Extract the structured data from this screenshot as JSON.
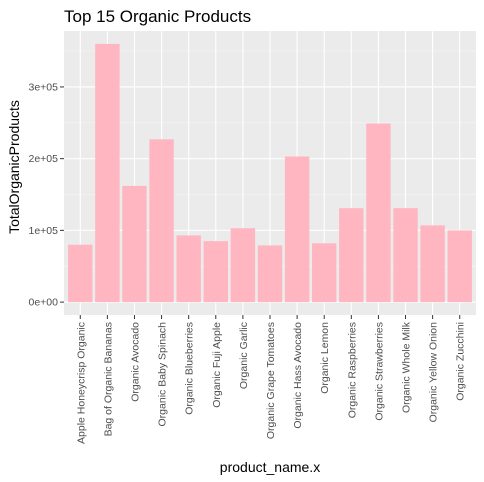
{
  "chart_data": {
    "type": "bar",
    "title": "Top 15 Organic Products",
    "xlabel": "product_name.x",
    "ylabel": "TotalOrganicProducts",
    "categories": [
      "Apple Honeycrisp Organic",
      "Bag of Organic Bananas",
      "Organic Avocado",
      "Organic Baby Spinach",
      "Organic Blueberries",
      "Organic Fuji Apple",
      "Organic Garlic",
      "Organic Grape Tomatoes",
      "Organic Hass Avocado",
      "Organic Lemon",
      "Organic Raspberries",
      "Organic Strawberries",
      "Organic Whole Milk",
      "Organic Yellow Onion",
      "Organic Zucchini"
    ],
    "values": [
      80000,
      360000,
      162000,
      227000,
      93000,
      85000,
      103000,
      79000,
      203000,
      82000,
      131000,
      249000,
      131000,
      107000,
      100000
    ],
    "yticks": [
      0,
      100000,
      200000,
      300000
    ],
    "ytick_labels": [
      "0e+00",
      "1e+05",
      "2e+05",
      "3e+05"
    ],
    "ylim": [
      -18000,
      378000
    ],
    "grid": true,
    "colors": {
      "bar": "#ffb6c1",
      "panel": "#ebebeb",
      "grid_major": "#ffffff",
      "grid_minor": "#f5f5f5",
      "tick": "#333333"
    }
  }
}
